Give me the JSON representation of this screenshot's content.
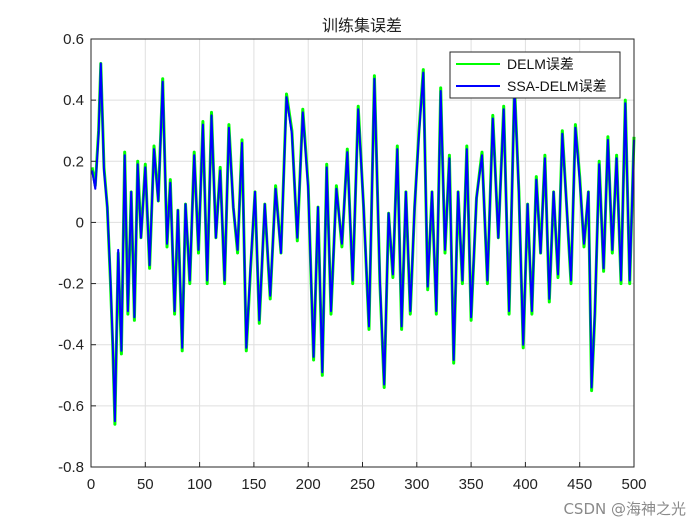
{
  "chart_data": {
    "type": "line",
    "title": "训练集误差",
    "xlim": [
      0,
      500
    ],
    "ylim": [
      -0.8,
      0.6
    ],
    "x_ticks": [
      0,
      50,
      100,
      150,
      200,
      250,
      300,
      350,
      400,
      450,
      500
    ],
    "y_ticks": [
      0.6,
      0.4,
      0.2,
      0,
      -0.2,
      -0.4,
      -0.6,
      -0.8
    ],
    "x_tick_labels": [
      "0",
      "50",
      "100",
      "150",
      "200",
      "250",
      "300",
      "350",
      "400",
      "450",
      "500"
    ],
    "y_tick_labels": [
      "0.6",
      "0.4",
      "0.2",
      "0",
      "-0.2",
      "-0.4",
      "-0.6",
      "-0.8"
    ],
    "grid": true,
    "legend_position": "top-right",
    "series": [
      {
        "name": "DELM误差",
        "color": "#00ff00",
        "x": [
          1,
          4,
          7,
          9,
          12,
          15,
          18,
          20,
          22,
          25,
          28,
          31,
          34,
          37,
          40,
          43,
          46,
          50,
          54,
          58,
          62,
          66,
          70,
          73,
          77,
          80,
          84,
          87,
          91,
          95,
          99,
          103,
          107,
          111,
          115,
          119,
          123,
          127,
          131,
          135,
          139,
          143,
          147,
          151,
          155,
          160,
          165,
          170,
          175,
          180,
          185,
          190,
          195,
          200,
          205,
          209,
          213,
          217,
          221,
          226,
          231,
          236,
          241,
          246,
          251,
          256,
          261,
          266,
          270,
          274,
          278,
          282,
          286,
          290,
          294,
          298,
          302,
          306,
          310,
          314,
          318,
          322,
          326,
          330,
          334,
          338,
          342,
          346,
          350,
          355,
          360,
          365,
          370,
          375,
          380,
          385,
          390,
          394,
          398,
          402,
          406,
          410,
          414,
          418,
          422,
          426,
          430,
          434,
          438,
          442,
          446,
          450,
          454,
          458,
          461,
          464,
          468,
          472,
          476,
          480,
          484,
          488,
          492,
          496,
          500
        ],
        "y": [
          0.18,
          0.12,
          0.3,
          0.52,
          0.18,
          0.05,
          -0.2,
          -0.4,
          -0.66,
          -0.1,
          -0.43,
          0.23,
          -0.3,
          0.1,
          -0.32,
          0.2,
          -0.05,
          0.19,
          -0.15,
          0.25,
          0.07,
          0.47,
          -0.08,
          0.14,
          -0.3,
          0.04,
          -0.42,
          0.06,
          -0.2,
          0.23,
          -0.1,
          0.33,
          -0.2,
          0.36,
          -0.05,
          0.18,
          -0.2,
          0.32,
          0.05,
          -0.1,
          0.27,
          -0.42,
          -0.15,
          0.1,
          -0.33,
          0.06,
          -0.25,
          0.12,
          -0.1,
          0.42,
          0.3,
          -0.06,
          0.37,
          0.12,
          -0.45,
          0.05,
          -0.5,
          0.19,
          -0.3,
          0.12,
          -0.08,
          0.24,
          -0.2,
          0.38,
          0.05,
          -0.35,
          0.48,
          -0.2,
          -0.54,
          0.03,
          -0.18,
          0.25,
          -0.35,
          0.1,
          -0.3,
          0.05,
          0.3,
          0.5,
          -0.22,
          0.1,
          -0.3,
          0.44,
          -0.1,
          0.22,
          -0.46,
          0.1,
          -0.2,
          0.25,
          -0.32,
          0.08,
          0.23,
          -0.2,
          0.35,
          -0.05,
          0.38,
          -0.3,
          0.45,
          0.1,
          -0.41,
          0.06,
          -0.3,
          0.15,
          -0.1,
          0.22,
          -0.26,
          0.1,
          -0.18,
          0.3,
          0.05,
          -0.2,
          0.32,
          0.15,
          -0.08,
          0.1,
          -0.55,
          -0.3,
          0.2,
          -0.16,
          0.28,
          -0.1,
          0.22,
          -0.2,
          0.4,
          -0.2,
          0.28
        ]
      },
      {
        "name": "SSA-DELM误差",
        "color": "#0000ff",
        "x": [
          1,
          4,
          7,
          9,
          12,
          15,
          18,
          20,
          22,
          25,
          28,
          31,
          34,
          37,
          40,
          43,
          46,
          50,
          54,
          58,
          62,
          66,
          70,
          73,
          77,
          80,
          84,
          87,
          91,
          95,
          99,
          103,
          107,
          111,
          115,
          119,
          123,
          127,
          131,
          135,
          139,
          143,
          147,
          151,
          155,
          160,
          165,
          170,
          175,
          180,
          185,
          190,
          195,
          200,
          205,
          209,
          213,
          217,
          221,
          226,
          231,
          236,
          241,
          246,
          251,
          256,
          261,
          266,
          270,
          274,
          278,
          282,
          286,
          290,
          294,
          298,
          302,
          306,
          310,
          314,
          318,
          322,
          326,
          330,
          334,
          338,
          342,
          346,
          350,
          355,
          360,
          365,
          370,
          375,
          380,
          385,
          390,
          394,
          398,
          402,
          406,
          410,
          414,
          418,
          422,
          426,
          430,
          434,
          438,
          442,
          446,
          450,
          454,
          458,
          461,
          464,
          468,
          472,
          476,
          480,
          484,
          488,
          492,
          496,
          500
        ],
        "y": [
          0.17,
          0.11,
          0.29,
          0.52,
          0.17,
          0.05,
          -0.19,
          -0.39,
          -0.65,
          -0.09,
          -0.42,
          0.22,
          -0.29,
          0.1,
          -0.31,
          0.19,
          -0.05,
          0.18,
          -0.14,
          0.24,
          0.07,
          0.46,
          -0.07,
          0.13,
          -0.29,
          0.04,
          -0.41,
          0.06,
          -0.19,
          0.22,
          -0.09,
          0.32,
          -0.19,
          0.35,
          -0.05,
          0.17,
          -0.19,
          0.31,
          0.05,
          -0.09,
          0.26,
          -0.41,
          -0.14,
          0.1,
          -0.32,
          0.06,
          -0.24,
          0.11,
          -0.1,
          0.41,
          0.29,
          -0.05,
          0.36,
          0.11,
          -0.44,
          0.05,
          -0.49,
          0.18,
          -0.29,
          0.11,
          -0.07,
          0.23,
          -0.19,
          0.37,
          0.05,
          -0.34,
          0.47,
          -0.19,
          -0.53,
          0.03,
          -0.17,
          0.24,
          -0.34,
          0.1,
          -0.29,
          0.05,
          0.29,
          0.49,
          -0.21,
          0.1,
          -0.29,
          0.43,
          -0.09,
          0.21,
          -0.45,
          0.1,
          -0.19,
          0.24,
          -0.31,
          0.08,
          0.22,
          -0.19,
          0.34,
          -0.05,
          0.37,
          -0.29,
          0.44,
          0.1,
          -0.4,
          0.06,
          -0.29,
          0.14,
          -0.1,
          0.21,
          -0.25,
          0.1,
          -0.17,
          0.29,
          0.05,
          -0.19,
          0.31,
          0.14,
          -0.07,
          0.1,
          -0.54,
          -0.29,
          0.19,
          -0.15,
          0.27,
          -0.09,
          0.21,
          -0.19,
          0.39,
          -0.19,
          0.27
        ]
      }
    ]
  },
  "watermark": "CSDN @海神之光"
}
